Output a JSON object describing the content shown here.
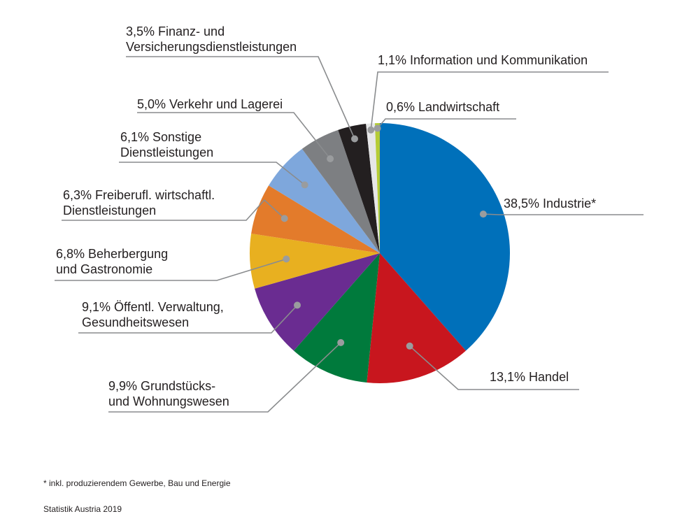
{
  "chart_data": {
    "type": "pie",
    "unit": "%",
    "slices": [
      {
        "name": "Industrie*",
        "value": 38.5,
        "label": "38,5% Industrie*",
        "color": "#0070ba"
      },
      {
        "name": "Handel",
        "value": 13.1,
        "label": "13,1% Handel",
        "color": "#c8161e"
      },
      {
        "name": "Grundstücks- und Wohnungswesen",
        "value": 9.9,
        "label": "9,9% Grundstücks-\nund Wohnungswesen",
        "color": "#007a3c"
      },
      {
        "name": "Öffentl. Verwaltung, Gesundheitswesen",
        "value": 9.1,
        "label": "9,1% Öffentl. Verwaltung,\nGesundheitswesen",
        "color": "#6a2c91"
      },
      {
        "name": "Beherbergung und Gastronomie",
        "value": 6.8,
        "label": "6,8% Beherbergung\nund Gastronomie",
        "color": "#e8b020"
      },
      {
        "name": "Freiberufl. wirtschaftl. Dienstleistungen",
        "value": 6.3,
        "label": "6,3% Freiberufl. wirtschaftl.\nDienstleistungen",
        "color": "#e37b2b"
      },
      {
        "name": "Sonstige Dienstleistungen",
        "value": 6.1,
        "label": "6,1% Sonstige\nDienstleistungen",
        "color": "#7ea7dc"
      },
      {
        "name": "Verkehr und Lagerei",
        "value": 5.0,
        "label": "5,0% Verkehr und Lagerei",
        "color": "#7d7f82"
      },
      {
        "name": "Finanz- und Versicherungsdienstleistungen",
        "value": 3.5,
        "label": "3,5% Finanz- und\nVersicherungsdienstleistungen",
        "color": "#231f20"
      },
      {
        "name": "Information und Kommunikation",
        "value": 1.1,
        "label": "1,1% Information und Kommunikation",
        "color": "#e6e7e8"
      },
      {
        "name": "Landwirtschaft",
        "value": 0.6,
        "label": "0,6% Landwirtschaft",
        "color": "#b5cc36"
      }
    ],
    "start_angle_deg": 0,
    "direction": "clockwise",
    "legend": "none",
    "footnote": "* inkl. produzierendem Gewerbe, Bau und Energie",
    "source": "Statistik Austria 2019"
  }
}
